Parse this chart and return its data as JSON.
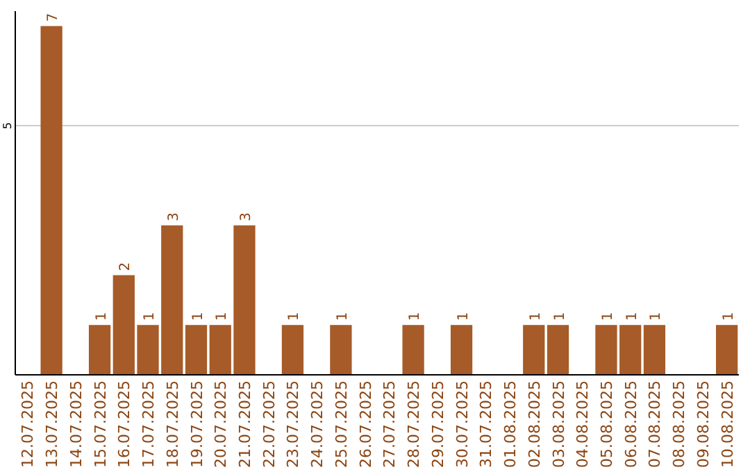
{
  "chart_data": {
    "type": "bar",
    "categories": [
      "12.07.2025",
      "13.07.2025",
      "14.07.2025",
      "15.07.2025",
      "16.07.2025",
      "17.07.2025",
      "18.07.2025",
      "19.07.2025",
      "20.07.2025",
      "21.07.2025",
      "22.07.2025",
      "23.07.2025",
      "24.07.2025",
      "25.07.2025",
      "26.07.2025",
      "27.07.2025",
      "28.07.2025",
      "29.07.2025",
      "30.07.2025",
      "31.07.2025",
      "01.08.2025",
      "02.08.2025",
      "03.08.2025",
      "04.08.2025",
      "05.08.2025",
      "06.08.2025",
      "07.08.2025",
      "08.08.2025",
      "09.08.2025",
      "10.08.2025"
    ],
    "values": [
      0,
      7,
      0,
      1,
      2,
      1,
      3,
      1,
      1,
      3,
      0,
      1,
      0,
      1,
      0,
      0,
      1,
      0,
      1,
      0,
      0,
      1,
      1,
      0,
      1,
      1,
      1,
      0,
      0,
      1
    ],
    "value_labels": [
      null,
      "7",
      null,
      "1",
      "2",
      "1",
      "3",
      "1",
      "1",
      "3",
      null,
      "1",
      null,
      "1",
      null,
      null,
      "1",
      null,
      "1",
      null,
      null,
      "1",
      "1",
      null,
      "1",
      "1",
      "1",
      null,
      null,
      "1"
    ],
    "color": "#a65b28",
    "ylim": [
      0,
      7.3
    ],
    "yticks": [
      5
    ],
    "grid": "y"
  }
}
